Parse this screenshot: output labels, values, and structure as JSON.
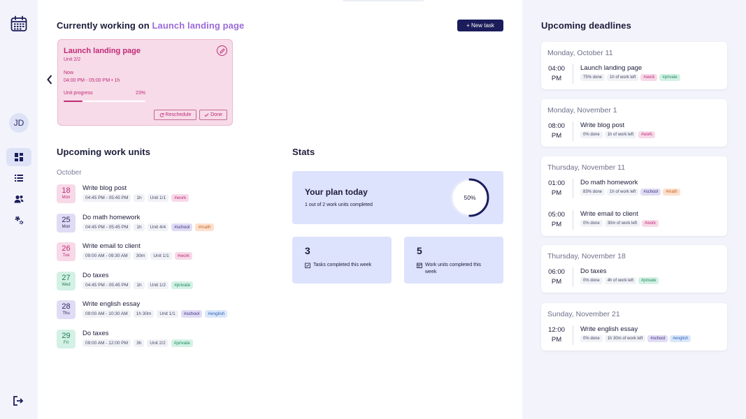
{
  "sidebar": {
    "logo_icon": "calendar-icon",
    "avatar_initials": "JD",
    "nav": [
      {
        "name": "dashboard",
        "icon": "grid-icon",
        "active": true
      },
      {
        "name": "list",
        "icon": "list-icon",
        "active": false
      },
      {
        "name": "team",
        "icon": "users-icon",
        "active": false
      },
      {
        "name": "settings",
        "icon": "gears-icon",
        "active": false
      }
    ],
    "logout_icon": "logout-icon"
  },
  "header": {
    "working_prefix": "Currently working on",
    "working_task": "Launch landing page",
    "new_task_label": "+ New task"
  },
  "current": {
    "title": "Launch landing page",
    "unit": "Unit 2/2",
    "now": "Now",
    "time": "04:00 PM - 05:00 PM • 1h",
    "progress_label": "Unit progress",
    "progress_text": "23%",
    "progress": 0.23,
    "reschedule_label": "Reschedule",
    "done_label": "Done"
  },
  "upcoming": {
    "title": "Upcoming work units",
    "month": "October",
    "items": [
      {
        "day": "18",
        "weekday": "Mon",
        "title": "Write blog post",
        "time": "04:45 PM - 05:45 PM",
        "duration": "1h",
        "unit": "Unit 1/1",
        "tags": [
          "#work"
        ],
        "color": "pink"
      },
      {
        "day": "25",
        "weekday": "Mon",
        "title": "Do math homework",
        "time": "04:45 PM - 05:45 PM",
        "duration": "1h",
        "unit": "Unit 4/4",
        "tags": [
          "#school",
          "#math"
        ],
        "color": "purple"
      },
      {
        "day": "26",
        "weekday": "Tue",
        "title": "Write email to client",
        "time": "09:00 AM - 09:30 AM",
        "duration": "30m",
        "unit": "Unit 1/1",
        "tags": [
          "#work"
        ],
        "color": "pink"
      },
      {
        "day": "27",
        "weekday": "Wed",
        "title": "Do taxes",
        "time": "04:45 PM - 05:45 PM",
        "duration": "1h",
        "unit": "Unit 1/2",
        "tags": [
          "#private"
        ],
        "color": "green"
      },
      {
        "day": "28",
        "weekday": "Thu",
        "title": "Write english essay",
        "time": "09:00 AM - 10:30 AM",
        "duration": "1h 30m",
        "unit": "Unit 1/1",
        "tags": [
          "#school",
          "#english"
        ],
        "color": "purple"
      },
      {
        "day": "29",
        "weekday": "Fri",
        "title": "Do taxes",
        "time": "09:00 AM - 12:00 PM",
        "duration": "3h",
        "unit": "Unit 2/2",
        "tags": [
          "#private"
        ],
        "color": "green"
      }
    ]
  },
  "stats": {
    "title": "Stats",
    "plan_title": "Your plan today",
    "plan_sub": "1 out of 2 work units completed",
    "plan_percent_text": "50%",
    "plan_percent": 0.5,
    "tasks_count": "3",
    "tasks_label": "Tasks completed this week",
    "units_count": "5",
    "units_label": "Work units completed this week"
  },
  "deadlines": {
    "title": "Upcoming deadlines",
    "groups": [
      {
        "date": "Monday, October 11",
        "items": [
          {
            "time": "04:00",
            "ampm": "PM",
            "title": "Launch landing page",
            "done": "75% done",
            "left": "1h of work left",
            "tags": [
              "#work",
              "#private"
            ]
          }
        ]
      },
      {
        "date": "Monday, November 1",
        "items": [
          {
            "time": "08:00",
            "ampm": "PM",
            "title": "Write blog post",
            "done": "0% done",
            "left": "1h of work left",
            "tags": [
              "#work"
            ]
          }
        ]
      },
      {
        "date": "Thursday, November 11",
        "items": [
          {
            "time": "01:00",
            "ampm": "PM",
            "title": "Do math homework",
            "done": "83% done",
            "left": "1h of work left",
            "tags": [
              "#school",
              "#math"
            ]
          },
          {
            "time": "05:00",
            "ampm": "PM",
            "title": "Write email to client",
            "done": "0% done",
            "left": "30m of work left",
            "tags": [
              "#work"
            ]
          }
        ]
      },
      {
        "date": "Thursday, November 18",
        "items": [
          {
            "time": "06:00",
            "ampm": "PM",
            "title": "Do taxes",
            "done": "0% done",
            "left": "4h of work left",
            "tags": [
              "#private"
            ]
          }
        ]
      },
      {
        "date": "Sunday, November 21",
        "items": [
          {
            "time": "12:00",
            "ampm": "PM",
            "title": "Write english essay",
            "done": "0% done",
            "left": "1h 30m of work left",
            "tags": [
              "#school",
              "#english"
            ]
          }
        ]
      }
    ]
  },
  "colors": {
    "navy": "#1b1c5a",
    "accent_purple": "#9a6bd8",
    "pink": "#c02a78",
    "tag_work_bg": "#f7d9e8",
    "tag_work_fg": "#c02a78",
    "tag_private_bg": "#d3f1e5",
    "tag_private_fg": "#1f8a62",
    "tag_school_bg": "#e1dcf5",
    "tag_school_fg": "#3b2f7a",
    "tag_math_bg": "#fde0cc",
    "tag_math_fg": "#c0652a",
    "tag_english_bg": "#dbe8fb",
    "tag_english_fg": "#2f63b8"
  }
}
